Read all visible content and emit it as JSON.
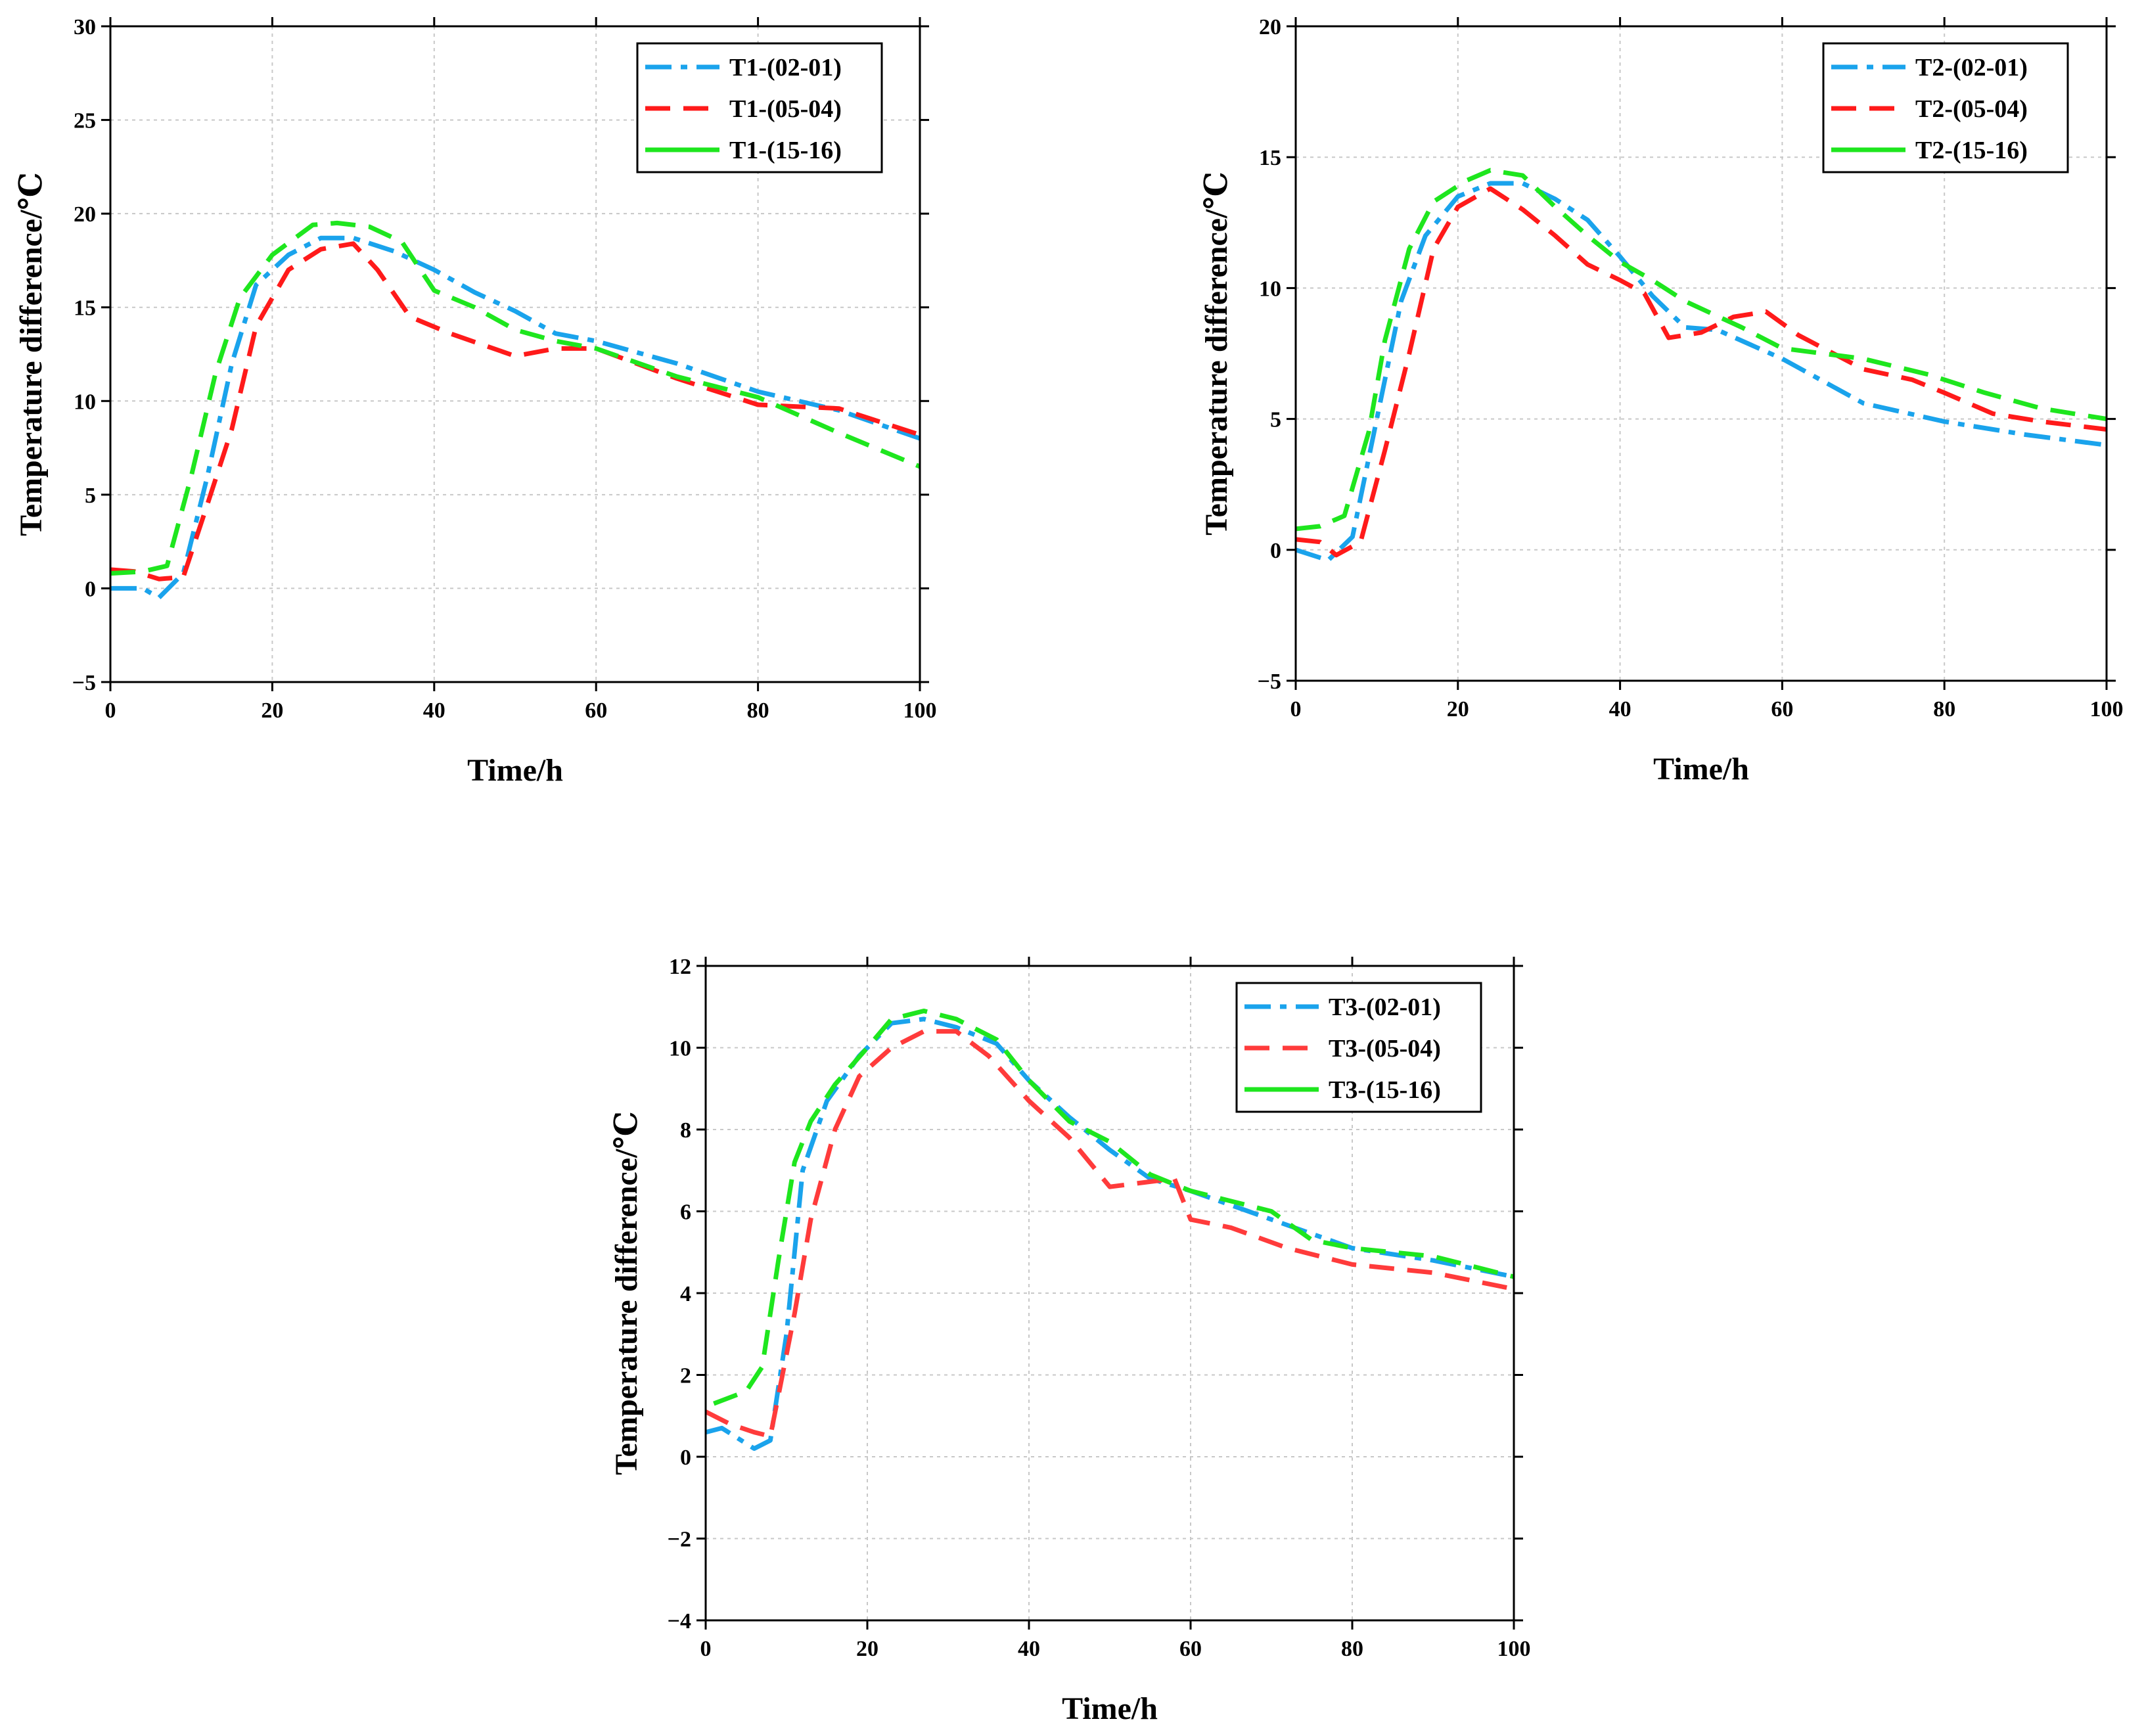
{
  "chart_data": [
    {
      "type": "line",
      "xlabel": "Time/h",
      "ylabel": "Temperature difference/℃",
      "xlim": [
        0,
        100
      ],
      "ylim": [
        -5,
        30
      ],
      "xticks": [
        0,
        20,
        40,
        60,
        80,
        100
      ],
      "yticks": [
        -5,
        0,
        5,
        10,
        15,
        20,
        25,
        30
      ],
      "xtick_labels": [
        "0",
        "20",
        "40",
        "60",
        "80",
        "100"
      ],
      "ytick_labels": [
        "−5",
        "0",
        "5",
        "10",
        "15",
        "20",
        "25",
        "30"
      ],
      "grid": true,
      "legend_position": "top-right",
      "series": [
        {
          "name": "T1-(02-01)",
          "color": "#1aa3ec",
          "style": "dashdot",
          "points": [
            [
              0,
              0
            ],
            [
              4,
              0
            ],
            [
              6,
              -0.5
            ],
            [
              9,
              0.8
            ],
            [
              12,
              6
            ],
            [
              15,
              12
            ],
            [
              18,
              16.2
            ],
            [
              22,
              17.8
            ],
            [
              26,
              18.7
            ],
            [
              30,
              18.7
            ],
            [
              35,
              18
            ],
            [
              40,
              17
            ],
            [
              45,
              15.8
            ],
            [
              50,
              14.8
            ],
            [
              55,
              13.6
            ],
            [
              60,
              13.2
            ],
            [
              70,
              12
            ],
            [
              80,
              10.5
            ],
            [
              90,
              9.5
            ],
            [
              100,
              8
            ]
          ]
        },
        {
          "name": "T1-(05-04)",
          "color": "#ff1a1a",
          "style": "dash",
          "points": [
            [
              0,
              1
            ],
            [
              3,
              0.9
            ],
            [
              6,
              0.5
            ],
            [
              9,
              0.6
            ],
            [
              12,
              4.5
            ],
            [
              15,
              8.5
            ],
            [
              18,
              14
            ],
            [
              22,
              17
            ],
            [
              26,
              18.1
            ],
            [
              30,
              18.4
            ],
            [
              33,
              17
            ],
            [
              37,
              14.5
            ],
            [
              42,
              13.6
            ],
            [
              50,
              12.4
            ],
            [
              55,
              12.8
            ],
            [
              60,
              12.8
            ],
            [
              70,
              11.2
            ],
            [
              80,
              9.8
            ],
            [
              90,
              9.6
            ],
            [
              100,
              8.2
            ]
          ]
        },
        {
          "name": "T1-(15-16)",
          "color": "#1ee61e",
          "style": "solid",
          "points": [
            [
              0,
              0.8
            ],
            [
              4,
              0.9
            ],
            [
              7,
              1.2
            ],
            [
              10,
              6
            ],
            [
              13,
              11.5
            ],
            [
              16,
              15.5
            ],
            [
              20,
              17.8
            ],
            [
              25,
              19.4
            ],
            [
              28,
              19.5
            ],
            [
              32,
              19.3
            ],
            [
              36,
              18.5
            ],
            [
              40,
              15.9
            ],
            [
              45,
              15
            ],
            [
              50,
              13.8
            ],
            [
              55,
              13.2
            ],
            [
              60,
              12.8
            ],
            [
              70,
              11.3
            ],
            [
              80,
              10.2
            ],
            [
              90,
              8.3
            ],
            [
              100,
              6.5
            ]
          ]
        }
      ]
    },
    {
      "type": "line",
      "xlabel": "Time/h",
      "ylabel": "Temperature difference/℃",
      "xlim": [
        0,
        100
      ],
      "ylim": [
        -5,
        20
      ],
      "xticks": [
        0,
        20,
        40,
        60,
        80,
        100
      ],
      "yticks": [
        -5,
        0,
        5,
        10,
        15,
        20
      ],
      "xtick_labels": [
        "0",
        "20",
        "40",
        "60",
        "80",
        "100"
      ],
      "ytick_labels": [
        "−5",
        "0",
        "5",
        "10",
        "15",
        "20"
      ],
      "grid": true,
      "legend_position": "top-right",
      "series": [
        {
          "name": "T2-(02-01)",
          "color": "#1aa3ec",
          "style": "dashdot",
          "points": [
            [
              0,
              0
            ],
            [
              4,
              -0.4
            ],
            [
              7,
              0.5
            ],
            [
              10,
              5
            ],
            [
              13,
              9.5
            ],
            [
              16,
              12
            ],
            [
              20,
              13.5
            ],
            [
              24,
              14
            ],
            [
              28,
              14
            ],
            [
              32,
              13.4
            ],
            [
              36,
              12.6
            ],
            [
              40,
              11.2
            ],
            [
              44,
              9.7
            ],
            [
              48,
              8.5
            ],
            [
              52,
              8.4
            ],
            [
              60,
              7.3
            ],
            [
              70,
              5.6
            ],
            [
              80,
              4.9
            ],
            [
              90,
              4.4
            ],
            [
              100,
              4.0
            ]
          ]
        },
        {
          "name": "T2-(05-04)",
          "color": "#ff1a1a",
          "style": "dash",
          "points": [
            [
              0,
              0.4
            ],
            [
              3,
              0.3
            ],
            [
              5,
              -0.2
            ],
            [
              8,
              0.3
            ],
            [
              11,
              3.8
            ],
            [
              14,
              7.5
            ],
            [
              17,
              11.5
            ],
            [
              20,
              13.1
            ],
            [
              24,
              13.8
            ],
            [
              28,
              13
            ],
            [
              32,
              12
            ],
            [
              36,
              10.9
            ],
            [
              40,
              10.3
            ],
            [
              43,
              9.8
            ],
            [
              46,
              8.1
            ],
            [
              50,
              8.3
            ],
            [
              54,
              8.9
            ],
            [
              58,
              9.1
            ],
            [
              62,
              8.2
            ],
            [
              70,
              6.9
            ],
            [
              76,
              6.5
            ],
            [
              80,
              6
            ],
            [
              86,
              5.2
            ],
            [
              92,
              4.9
            ],
            [
              100,
              4.6
            ]
          ]
        },
        {
          "name": "T2-(15-16)",
          "color": "#1ee61e",
          "style": "solid",
          "points": [
            [
              0,
              0.8
            ],
            [
              3,
              0.9
            ],
            [
              6,
              1.3
            ],
            [
              9,
              4.5
            ],
            [
              11,
              8
            ],
            [
              14,
              11.5
            ],
            [
              17,
              13.3
            ],
            [
              21,
              14.1
            ],
            [
              24,
              14.5
            ],
            [
              28,
              14.3
            ],
            [
              32,
              13.1
            ],
            [
              36,
              12
            ],
            [
              40,
              11
            ],
            [
              44,
              10.3
            ],
            [
              48,
              9.5
            ],
            [
              55,
              8.5
            ],
            [
              60,
              7.7
            ],
            [
              70,
              7.3
            ],
            [
              78,
              6.7
            ],
            [
              85,
              6
            ],
            [
              92,
              5.4
            ],
            [
              100,
              5
            ]
          ]
        }
      ]
    },
    {
      "type": "line",
      "xlabel": "Time/h",
      "ylabel": "Temperature difference/℃",
      "xlim": [
        0,
        100
      ],
      "ylim": [
        -4,
        12
      ],
      "xticks": [
        0,
        20,
        40,
        60,
        80,
        100
      ],
      "yticks": [
        -4,
        -2,
        0,
        2,
        4,
        6,
        8,
        10,
        12
      ],
      "xtick_labels": [
        "0",
        "20",
        "40",
        "60",
        "80",
        "100"
      ],
      "ytick_labels": [
        "−4",
        "−2",
        "0",
        "2",
        "4",
        "6",
        "8",
        "10",
        "12"
      ],
      "grid": true,
      "legend_position": "top-right",
      "series": [
        {
          "name": "T3-(02-01)",
          "color": "#1aa3ec",
          "style": "dashdot",
          "points": [
            [
              0,
              0.6
            ],
            [
              2,
              0.7
            ],
            [
              6,
              0.2
            ],
            [
              8,
              0.4
            ],
            [
              10,
              3
            ],
            [
              12,
              7
            ],
            [
              15,
              8.7
            ],
            [
              19,
              9.8
            ],
            [
              23,
              10.6
            ],
            [
              27,
              10.7
            ],
            [
              31,
              10.5
            ],
            [
              36,
              10.1
            ],
            [
              40,
              9.2
            ],
            [
              45,
              8.3
            ],
            [
              50,
              7.5
            ],
            [
              55,
              6.8
            ],
            [
              60,
              6.5
            ],
            [
              70,
              5.8
            ],
            [
              80,
              5.1
            ],
            [
              90,
              4.8
            ],
            [
              100,
              4.4
            ]
          ]
        },
        {
          "name": "T3-(05-04)",
          "color": "#ff3b3b",
          "style": "dash",
          "points": [
            [
              0,
              1.1
            ],
            [
              3,
              0.8
            ],
            [
              6,
              0.6
            ],
            [
              8,
              0.5
            ],
            [
              9,
              1.5
            ],
            [
              11,
              3.5
            ],
            [
              13,
              5.8
            ],
            [
              16,
              8
            ],
            [
              19,
              9.3
            ],
            [
              23,
              10
            ],
            [
              27,
              10.4
            ],
            [
              31,
              10.4
            ],
            [
              35,
              9.8
            ],
            [
              40,
              8.7
            ],
            [
              45,
              7.8
            ],
            [
              50,
              6.6
            ],
            [
              58,
              6.8
            ],
            [
              60,
              5.8
            ],
            [
              65,
              5.6
            ],
            [
              72,
              5.1
            ],
            [
              80,
              4.7
            ],
            [
              90,
              4.5
            ],
            [
              100,
              4.1
            ]
          ]
        },
        {
          "name": "T3-(15-16)",
          "color": "#1ee61e",
          "style": "solid",
          "points": [
            [
              1,
              1.3
            ],
            [
              5,
              1.6
            ],
            [
              7,
              2.2
            ],
            [
              9,
              4.8
            ],
            [
              11,
              7.2
            ],
            [
              13,
              8.2
            ],
            [
              16,
              9.1
            ],
            [
              20,
              10
            ],
            [
              23,
              10.7
            ],
            [
              27,
              10.9
            ],
            [
              31,
              10.7
            ],
            [
              36,
              10.2
            ],
            [
              40,
              9.2
            ],
            [
              45,
              8.2
            ],
            [
              50,
              7.7
            ],
            [
              55,
              6.9
            ],
            [
              60,
              6.5
            ],
            [
              70,
              6
            ],
            [
              75,
              5.3
            ],
            [
              80,
              5.1
            ],
            [
              90,
              4.9
            ],
            [
              100,
              4.4
            ]
          ]
        }
      ]
    }
  ]
}
